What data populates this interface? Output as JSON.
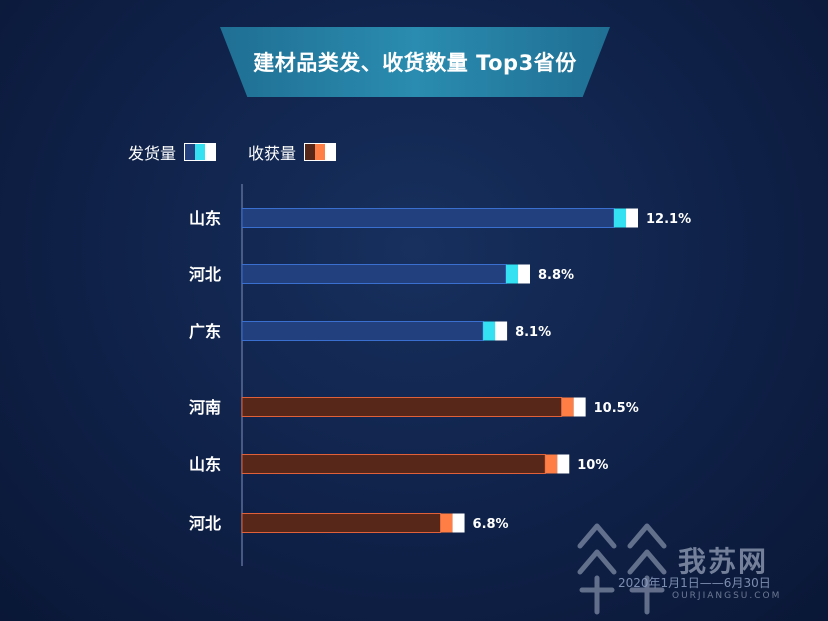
{
  "title": "建材品类发、收货数量 Top3省份",
  "legend": {
    "shipment": "发货量",
    "receipt": "收获量"
  },
  "colors": {
    "ship_bar": "#21407d",
    "ship_border": "#3a6fd0",
    "ship_accent": "#33e1f2",
    "recv_bar": "#572719",
    "recv_border": "#e0603a",
    "recv_accent": "#ff7e45",
    "cap": "#ffffff"
  },
  "chart_data": {
    "type": "bar",
    "orientation": "horizontal",
    "groups": [
      {
        "name": "发货量",
        "categories": [
          "山东",
          "河北",
          "广东"
        ],
        "values": [
          12.1,
          8.8,
          8.1
        ],
        "labels": [
          "12.1%",
          "8.8%",
          "8.1%"
        ]
      },
      {
        "name": "收获量",
        "categories": [
          "河南",
          "山东",
          "河北"
        ],
        "values": [
          10.5,
          10,
          6.8
        ],
        "labels": [
          "10.5%",
          "10%",
          "6.8%"
        ]
      }
    ],
    "xlim": [
      0,
      12.1
    ],
    "grid": false
  },
  "footer": {
    "date_range": "2020年1月1日——6月30日",
    "watermark": "我苏网",
    "watermark_sub": "OURJIANGSU.COM"
  }
}
